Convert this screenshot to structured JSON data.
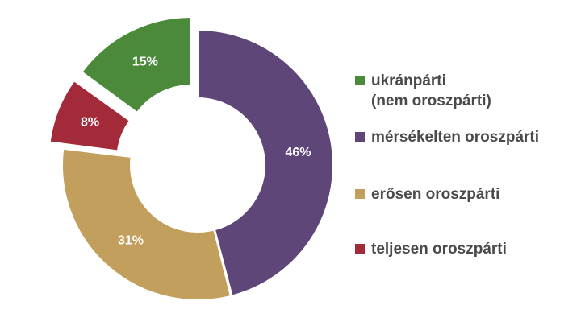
{
  "chart_data": {
    "type": "pie",
    "donut": true,
    "categories": [
      "ukránpárti (nem oroszpárti)",
      "mérsékelten oroszpárti",
      "erősen oroszpárti",
      "teljesen oroszpárti"
    ],
    "values": [
      15,
      46,
      31,
      8
    ],
    "value_labels": [
      "15%",
      "46%",
      "31%",
      "8%"
    ],
    "colors": [
      "#4a8a3a",
      "#5e4778",
      "#c29f5d",
      "#a32a39"
    ],
    "exploded": [
      true,
      false,
      false,
      true
    ],
    "legend_position": "right",
    "legend": [
      {
        "lines": [
          "ukránpárti",
          "(nem oroszpárti)"
        ],
        "color": "#4a8a3a"
      },
      {
        "lines": [
          "mérsékelten oroszpárti"
        ],
        "color": "#5e4778"
      },
      {
        "lines": [
          "erősen oroszpárti"
        ],
        "color": "#c29f5d"
      },
      {
        "lines": [
          "teljesen oroszpárti"
        ],
        "color": "#a32a39"
      }
    ]
  }
}
